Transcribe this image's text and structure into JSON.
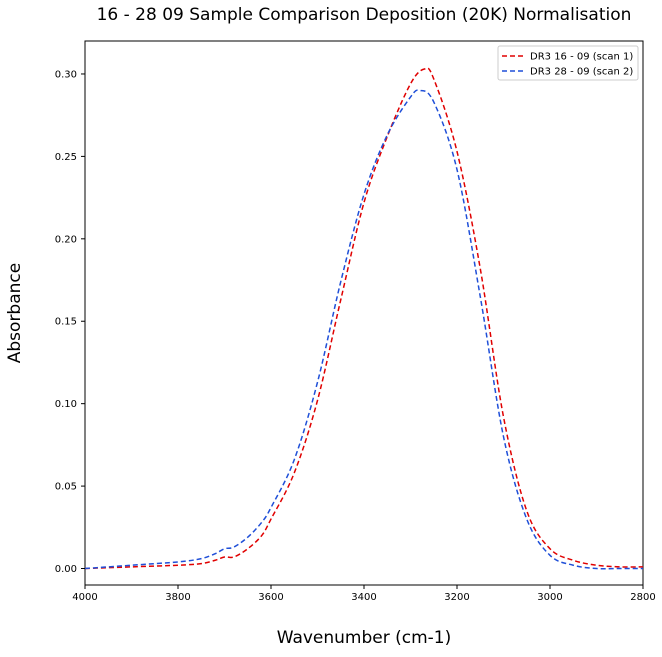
{
  "chart_data": {
    "type": "line",
    "title": "16 - 28 09 Sample Comparison Deposition (20K) Normalisation",
    "xlabel": "Wavenumber (cm-1)",
    "ylabel": "Absorbance",
    "xlim": [
      4000,
      2800
    ],
    "ylim": [
      -0.01,
      0.32
    ],
    "x_inverted": true,
    "xticks": [
      4000,
      3800,
      3600,
      3400,
      3200,
      3000,
      2800
    ],
    "xtick_labels": [
      "4000",
      "3800",
      "3600",
      "3400",
      "3200",
      "3000",
      "2800"
    ],
    "yticks": [
      0.0,
      0.05,
      0.1,
      0.15,
      0.2,
      0.25,
      0.3
    ],
    "ytick_labels": [
      "0.00",
      "0.05",
      "0.10",
      "0.15",
      "0.20",
      "0.25",
      "0.30"
    ],
    "grid": false,
    "legend_position": "top-right",
    "series": [
      {
        "name": "DR3 16 - 09 (scan 1)",
        "color": "#e00000",
        "linestyle": "dashed",
        "x": [
          4000,
          3900,
          3800,
          3750,
          3720,
          3700,
          3680,
          3650,
          3620,
          3600,
          3550,
          3500,
          3450,
          3400,
          3350,
          3300,
          3270,
          3250,
          3200,
          3150,
          3100,
          3050,
          3000,
          2950,
          2900,
          2850,
          2800
        ],
        "y": [
          0.0,
          0.001,
          0.002,
          0.003,
          0.005,
          0.007,
          0.007,
          0.012,
          0.02,
          0.03,
          0.058,
          0.102,
          0.163,
          0.222,
          0.262,
          0.294,
          0.303,
          0.297,
          0.253,
          0.182,
          0.092,
          0.035,
          0.012,
          0.005,
          0.002,
          0.001,
          0.001
        ]
      },
      {
        "name": "DR3 28 - 09 (scan 2)",
        "color": "#1f4fd8",
        "linestyle": "dashed",
        "x": [
          4000,
          3900,
          3800,
          3750,
          3720,
          3700,
          3680,
          3650,
          3620,
          3600,
          3550,
          3500,
          3450,
          3400,
          3350,
          3300,
          3280,
          3250,
          3200,
          3150,
          3100,
          3050,
          3000,
          2950,
          2900,
          2850,
          2800
        ],
        "y": [
          0.0,
          0.002,
          0.004,
          0.006,
          0.009,
          0.012,
          0.013,
          0.019,
          0.028,
          0.037,
          0.066,
          0.113,
          0.174,
          0.227,
          0.263,
          0.286,
          0.29,
          0.283,
          0.242,
          0.165,
          0.08,
          0.03,
          0.008,
          0.002,
          0.0,
          0.0,
          0.0
        ]
      }
    ]
  }
}
